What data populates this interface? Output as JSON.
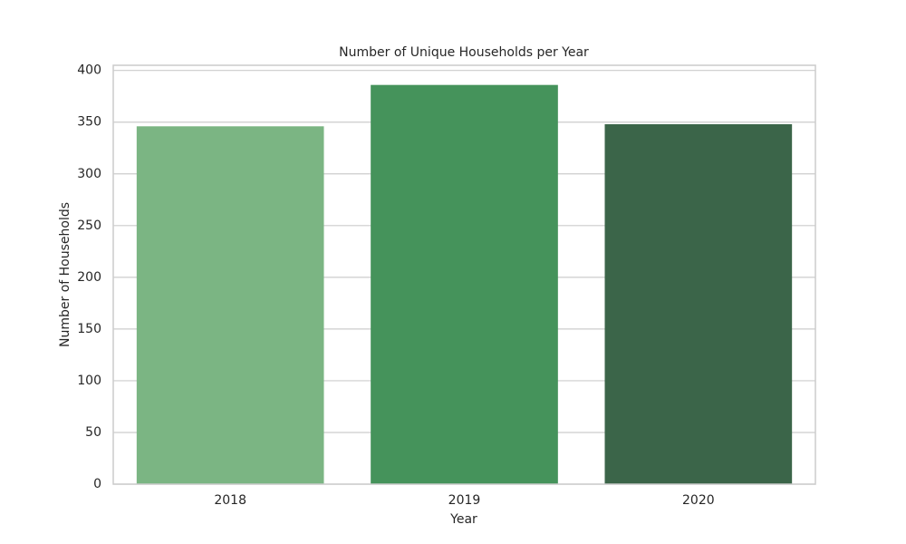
{
  "chart_data": {
    "type": "bar",
    "title": "Number of Unique Households per Year",
    "xlabel": "Year",
    "ylabel": "Number of Households",
    "categories": [
      "2018",
      "2019",
      "2020"
    ],
    "values": [
      346,
      386,
      348
    ],
    "colors": [
      "#7bb583",
      "#45935b",
      "#3b6549"
    ],
    "ylim": [
      0,
      405
    ],
    "yticks": [
      0,
      50,
      100,
      150,
      200,
      250,
      300,
      350,
      400
    ],
    "grid": true
  }
}
